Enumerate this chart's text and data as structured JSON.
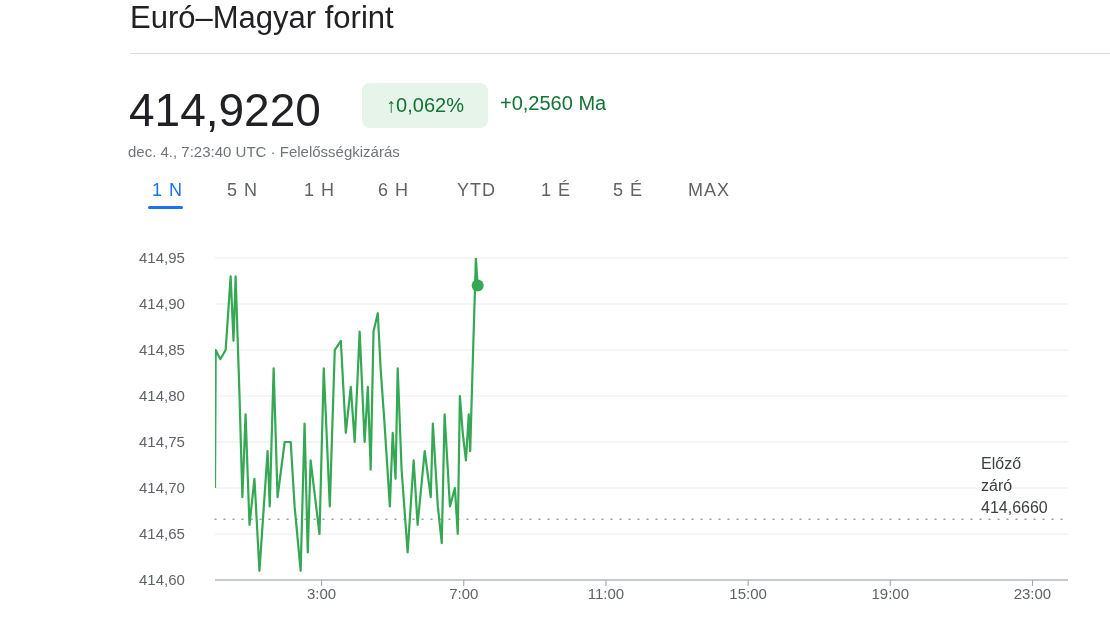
{
  "chart_data": {
    "type": "line",
    "title": "Euró–Magyar forint",
    "annotations": [
      "414,9220",
      "↑0,062%",
      "+0,2560 Ma",
      "dec. 4., 7:23:40 UTC · Felelősségkizárás",
      "1 N",
      "5 N",
      "1 H",
      "6 H",
      "YTD",
      "1 É",
      "5 É",
      "MAX"
    ],
    "series": [
      {
        "color": "#34a853",
        "x": [
          0,
          0.02,
          0.15,
          0.3,
          0.44,
          0.52,
          0.58,
          0.69,
          0.77,
          0.86,
          0.97,
          1.11,
          1.25,
          1.48,
          1.54,
          1.65,
          1.76,
          1.96,
          2.13,
          2.24,
          2.41,
          2.52,
          2.61,
          2.69,
          2.94,
          3.06,
          3.23,
          3.37,
          3.54,
          3.68,
          3.82,
          3.93,
          4.07,
          4.21,
          4.3,
          4.38,
          4.46,
          4.58,
          4.66,
          4.77,
          4.92,
          5.0,
          5.08,
          5.14,
          5.25,
          5.42,
          5.59,
          5.7,
          5.9,
          6.07,
          6.13,
          6.27,
          6.38,
          6.46,
          6.61,
          6.75,
          6.83,
          6.89,
          6.97,
          7.06,
          7.14,
          7.18,
          7.24,
          7.34,
          7.39
        ],
        "values": [
          414.7,
          414.85,
          414.84,
          414.85,
          414.93,
          414.86,
          414.93,
          414.8,
          414.69,
          414.78,
          414.66,
          414.71,
          414.61,
          414.74,
          414.68,
          414.83,
          414.69,
          414.75,
          414.75,
          414.68,
          414.61,
          414.77,
          414.63,
          414.73,
          414.65,
          414.83,
          414.68,
          414.85,
          414.86,
          414.76,
          414.81,
          414.75,
          414.87,
          414.75,
          414.81,
          414.72,
          414.87,
          414.89,
          414.83,
          414.77,
          414.68,
          414.76,
          414.71,
          414.83,
          414.72,
          414.63,
          414.73,
          414.66,
          414.74,
          414.69,
          414.77,
          414.68,
          414.64,
          414.78,
          414.68,
          414.7,
          414.65,
          414.8,
          414.76,
          414.73,
          414.78,
          414.74,
          414.82,
          414.95,
          414.92
        ]
      },
      {
        "type": "scatter",
        "marker": "circle",
        "color": "#34a853",
        "x": [
          7.39
        ],
        "values": [
          414.92
        ]
      }
    ],
    "xlim": [
      0,
      24
    ],
    "xticks": [
      {
        "value": 3,
        "label": "3:00"
      },
      {
        "value": 7,
        "label": "7:00"
      },
      {
        "value": 11,
        "label": "11:00"
      },
      {
        "value": 15,
        "label": "15:00"
      },
      {
        "value": 19,
        "label": "19:00"
      },
      {
        "value": 23,
        "label": "23:00"
      }
    ],
    "ylim": [
      414.6,
      414.95
    ],
    "yticks": [
      {
        "value": 414.6,
        "label": "414,60"
      },
      {
        "value": 414.65,
        "label": "414,65"
      },
      {
        "value": 414.7,
        "label": "414,70"
      },
      {
        "value": 414.75,
        "label": "414,75"
      },
      {
        "value": 414.8,
        "label": "414,80"
      },
      {
        "value": 414.85,
        "label": "414,85"
      },
      {
        "value": 414.9,
        "label": "414,90"
      },
      {
        "value": 414.95,
        "label": "414,95"
      }
    ],
    "ref_lines": [
      {
        "axis": "y",
        "value": 414.666,
        "label": "Előző záró 414,6660",
        "color": "#9aa0a6",
        "line_style": "dotted"
      }
    ],
    "grid": "y",
    "line_style": "solid"
  }
}
